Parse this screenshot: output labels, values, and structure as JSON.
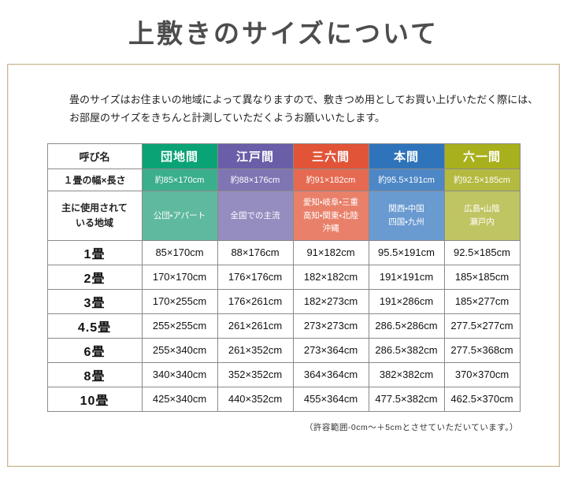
{
  "title": "上敷きのサイズについて",
  "intro": {
    "line1": "畳のサイズはお住まいの地域によって異なりますので、敷きつめ用としてお買い上げいただく際には、",
    "line2": "お部屋のサイズをきちんと計測していただくようお願いいたします。"
  },
  "footnote": "（許容範囲-0cm～＋5cmとさせていただいています。）",
  "table": {
    "corner_label": "呼び名",
    "size_row_label": "１畳の幅×長さ",
    "region_row_label": "主に使用されて\nいる地域",
    "columns": [
      {
        "name": "団地間",
        "size": "約85×170cm",
        "region": "公団・アパート",
        "colors": {
          "header": "#0aa376",
          "size": "#3bae8c",
          "region": "#5fb99e"
        }
      },
      {
        "name": "江戸間",
        "size": "約88×176cm",
        "region": "全国での主流",
        "colors": {
          "header": "#695ea7",
          "size": "#7f75b3",
          "region": "#958dc0"
        }
      },
      {
        "name": "三六間",
        "size": "約91×182cm",
        "region": "愛知・岐阜・三重\n高知・関東・北陸\n沖縄",
        "colors": {
          "header": "#e15438",
          "size": "#e56a51",
          "region": "#e9806a"
        }
      },
      {
        "name": "本間",
        "size": "約95.5×191cm",
        "region": "関西・中国\n四国・九州",
        "colors": {
          "header": "#2f74bb",
          "size": "#4d87c6",
          "region": "#699ad0"
        }
      },
      {
        "name": "六一間",
        "size": "約92.5×185cm",
        "region": "広島・山陰\n瀬戸内",
        "colors": {
          "header": "#a8b01d",
          "size": "#b4ba40",
          "region": "#c0c563"
        }
      }
    ],
    "body_rows": [
      {
        "label": "1畳",
        "values": [
          "85×170cm",
          "88×176cm",
          "91×182cm",
          "95.5×191cm",
          "92.5×185cm"
        ]
      },
      {
        "label": "2畳",
        "values": [
          "170×170cm",
          "176×176cm",
          "182×182cm",
          "191×191cm",
          "185×185cm"
        ]
      },
      {
        "label": "3畳",
        "values": [
          "170×255cm",
          "176×261cm",
          "182×273cm",
          "191×286cm",
          "185×277cm"
        ]
      },
      {
        "label": "4.5畳",
        "values": [
          "255×255cm",
          "261×261cm",
          "273×273cm",
          "286.5×286cm",
          "277.5×277cm"
        ]
      },
      {
        "label": "6畳",
        "values": [
          "255×340cm",
          "261×352cm",
          "273×364cm",
          "286.5×382cm",
          "277.5×368cm"
        ]
      },
      {
        "label": "8畳",
        "values": [
          "340×340cm",
          "352×352cm",
          "364×364cm",
          "382×382cm",
          "370×370cm"
        ]
      },
      {
        "label": "10畳",
        "values": [
          "425×340cm",
          "440×352cm",
          "455×364cm",
          "477.5×382cm",
          "462.5×370cm"
        ]
      }
    ]
  }
}
